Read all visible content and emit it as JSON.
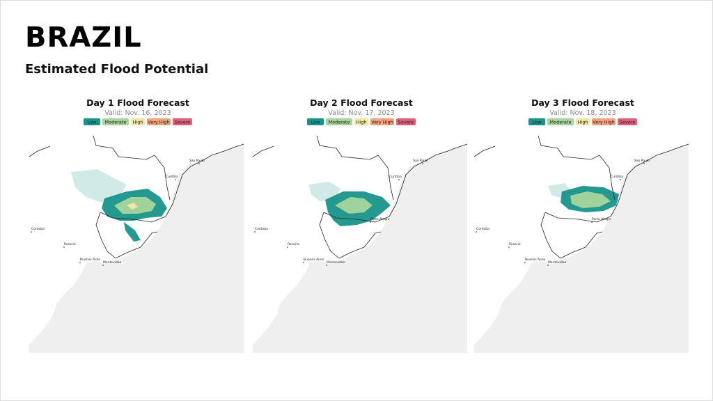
{
  "header": {
    "title": "BRAZIL",
    "subtitle": "Estimated Flood Potential"
  },
  "legend": [
    "Low",
    "Moderate",
    "High",
    "Very High",
    "Severe"
  ],
  "panels": [
    {
      "title": "Day 1 Flood Forecast",
      "valid": "Valid: Nov. 16, 2023",
      "cities": [
        "Sao Paulo",
        "Curitiba",
        "Cordoba",
        "Rosario",
        "Buenos Aires",
        "Montevideo"
      ]
    },
    {
      "title": "Day 2 Flood Forecast",
      "valid": "Valid: Nov. 17, 2023",
      "cities": [
        "Sao Paulo",
        "Curitiba",
        "Cordoba",
        "Rosario",
        "Buenos Aires",
        "Montevideo",
        "Porto Alegre"
      ]
    },
    {
      "title": "Day 3 Flood Forecast",
      "valid": "Valid: Nov. 18, 2023",
      "cities": [
        "Sao Paulo",
        "Curitiba",
        "Cordoba",
        "Rosario",
        "Buenos Aires",
        "Montevideo",
        "Porto Alegre"
      ]
    }
  ]
}
